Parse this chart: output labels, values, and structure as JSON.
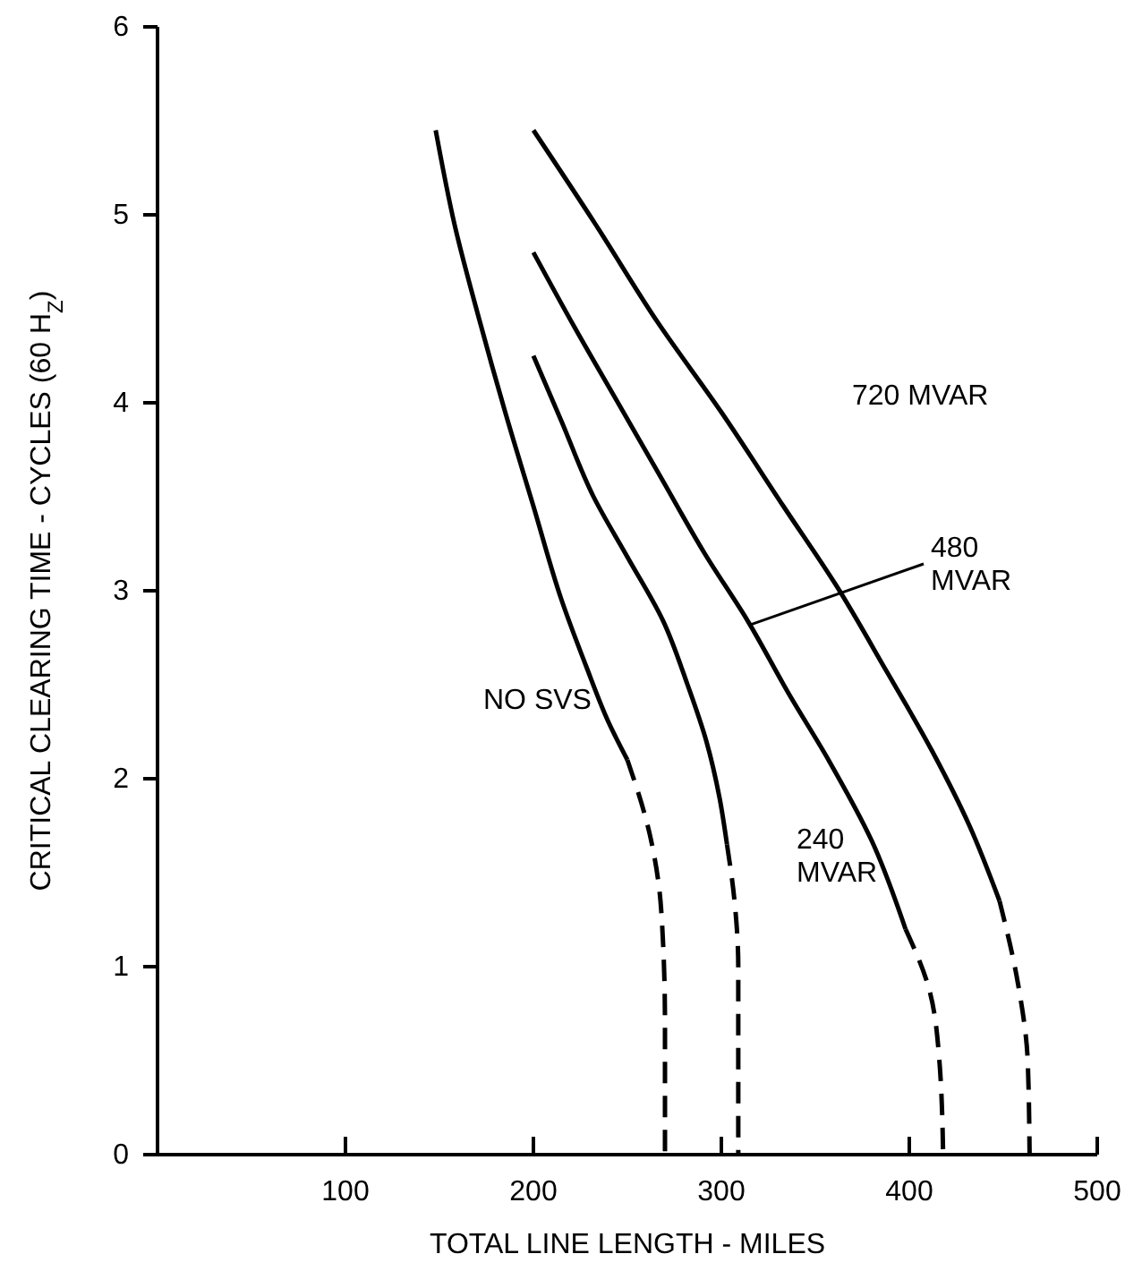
{
  "chart_data": {
    "type": "line",
    "xlabel": "TOTAL LINE LENGTH - MILES",
    "ylabel": "CRITICAL CLEARING TIME - CYCLES (60 H$_{Z}$)",
    "xlim": [
      0,
      500
    ],
    "xticks": [
      100,
      200,
      300,
      400,
      500
    ],
    "ylim": [
      0,
      6
    ],
    "yticks": [
      0,
      1,
      2,
      3,
      4,
      5,
      6
    ],
    "grid": false,
    "marker": "none",
    "series": [
      {
        "color": "#000000",
        "line_style": "solid",
        "x": [
          148,
          158,
          171,
          185,
          200,
          215,
          228,
          240,
          250
        ],
        "values": [
          5.45,
          4.95,
          4.45,
          3.95,
          3.45,
          2.95,
          2.6,
          2.3,
          2.1
        ]
      },
      {
        "color": "#000000",
        "line_style": "dashed",
        "x": [
          250,
          262,
          268,
          270,
          270
        ],
        "values": [
          2.1,
          1.7,
          1.3,
          0.7,
          0
        ]
      },
      {
        "color": "#000000",
        "line_style": "solid",
        "x": [
          200,
          215,
          232,
          250,
          269,
          282,
          292,
          299,
          303
        ],
        "values": [
          4.25,
          3.9,
          3.5,
          3.18,
          2.84,
          2.5,
          2.2,
          1.9,
          1.65
        ]
      },
      {
        "color": "#000000",
        "line_style": "dashed",
        "x": [
          303,
          307,
          309,
          309
        ],
        "values": [
          1.65,
          1.35,
          1.0,
          0
        ]
      },
      {
        "color": "#000000",
        "line_style": "solid",
        "x": [
          200,
          222,
          245,
          268,
          291,
          314,
          336,
          357,
          380,
          398
        ],
        "values": [
          4.8,
          4.4,
          4.0,
          3.6,
          3.2,
          2.84,
          2.45,
          2.1,
          1.67,
          1.2
        ]
      },
      {
        "color": "#000000",
        "line_style": "dashed",
        "x": [
          398,
          410,
          416,
          418
        ],
        "values": [
          1.2,
          0.9,
          0.5,
          0
        ]
      },
      {
        "color": "#000000",
        "line_style": "solid",
        "x": [
          200,
          233,
          266,
          300,
          333,
          361,
          388,
          412,
          432,
          448
        ],
        "values": [
          5.45,
          4.95,
          4.43,
          3.95,
          3.45,
          3.03,
          2.57,
          2.15,
          1.75,
          1.35
        ]
      },
      {
        "color": "#000000",
        "line_style": "dashed",
        "x": [
          448,
          458,
          463,
          464
        ],
        "values": [
          1.35,
          0.9,
          0.5,
          0
        ]
      }
    ],
    "annotations": [
      "NO SVS",
      "240\nMVAR",
      {
        "text": "480\nMVAR",
        "x": 314,
        "y": 2.84
      },
      "720 MVAR"
    ]
  }
}
